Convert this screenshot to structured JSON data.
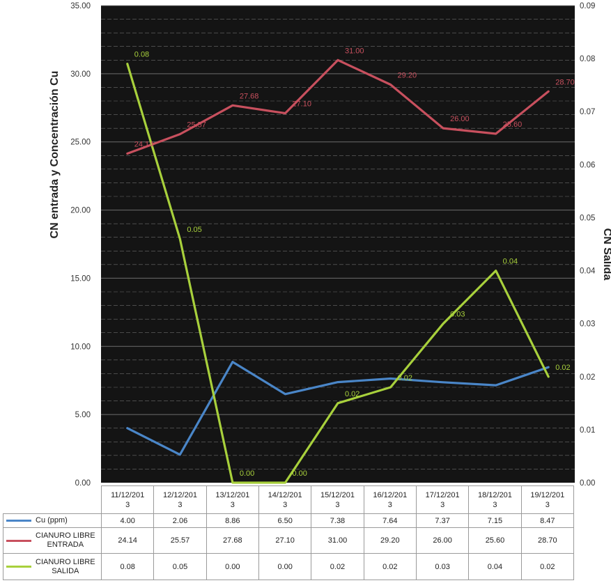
{
  "chart_data": {
    "type": "line",
    "categories": [
      "11/12/201\n3",
      "12/12/201\n3",
      "13/12/201\n3",
      "14/12/201\n3",
      "15/12/201\n3",
      "16/12/201\n3",
      "17/12/201\n3",
      "18/12/201\n3",
      "19/12/201\n3"
    ],
    "ylabel": "CN entrada y Concentración Cu",
    "y2label": "CN Salida",
    "ylim": [
      0,
      35
    ],
    "y2lim": [
      0,
      0.09
    ],
    "yticks": [
      "0.00",
      "5.00",
      "10.00",
      "15.00",
      "20.00",
      "25.00",
      "30.00",
      "35.00"
    ],
    "y2ticks": [
      "0.00",
      "0.01",
      "0.02",
      "0.03",
      "0.04",
      "0.05",
      "0.06",
      "0.07",
      "0.08",
      "0.09"
    ],
    "grid": true,
    "legend": "data table below chart",
    "series": [
      {
        "name": "Cu (ppm)",
        "axis": "left",
        "color": "#4a86c8",
        "values": [
          4.0,
          2.06,
          8.86,
          6.5,
          7.38,
          7.64,
          7.37,
          7.15,
          8.47
        ],
        "table_values": [
          "4.00",
          "2.06",
          "8.86",
          "6.50",
          "7.38",
          "7.64",
          "7.37",
          "7.15",
          "8.47"
        ],
        "data_labels": [
          "",
          "",
          "",
          "",
          "",
          "",
          "",
          "",
          ""
        ]
      },
      {
        "name": "CIANURO LIBRE\nENTRADA",
        "axis": "left",
        "color": "#c8505e",
        "values": [
          24.14,
          25.57,
          27.68,
          27.1,
          31.0,
          29.2,
          26.0,
          25.6,
          28.7
        ],
        "table_values": [
          "24.14",
          "25.57",
          "27.68",
          "27.10",
          "31.00",
          "29.20",
          "26.00",
          "25.60",
          "28.70"
        ],
        "data_labels": [
          "24.14",
          "25.57",
          "27.68",
          "27.10",
          "31.00",
          "29.20",
          "26.00",
          "25.60",
          "28.70"
        ]
      },
      {
        "name": "CIANURO LIBRE\nSALIDA",
        "axis": "right",
        "color": "#a8d03c",
        "values": [
          0.079,
          0.046,
          0.0,
          0.0,
          0.015,
          0.018,
          0.03,
          0.04,
          0.02
        ],
        "table_values": [
          "0.08",
          "0.05",
          "0.00",
          "0.00",
          "0.02",
          "0.02",
          "0.03",
          "0.04",
          "0.02"
        ],
        "data_labels": [
          "0.08",
          "0.05",
          "0.00",
          "0.00",
          "0.02",
          "0.02",
          "0.03",
          "0.04",
          "0.02"
        ]
      }
    ]
  },
  "colors": {
    "plot_background": "#141414",
    "gridline": "#8a8a8a"
  }
}
